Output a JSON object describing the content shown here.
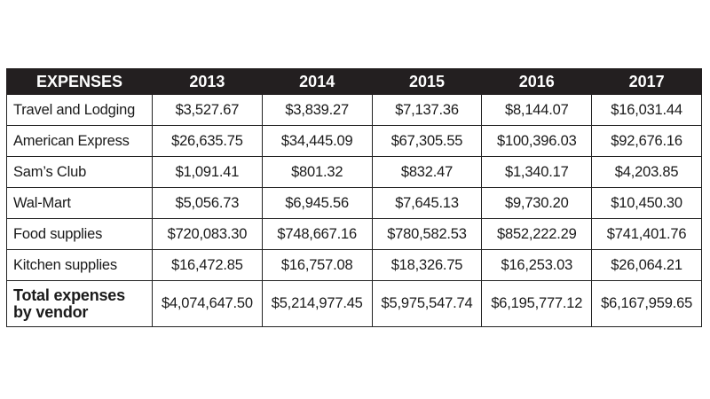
{
  "table": {
    "header": [
      "EXPENSES",
      "2013",
      "2014",
      "2015",
      "2016",
      "2017"
    ],
    "rows": [
      {
        "label": "Travel and Lodging",
        "values": [
          "$3,527.67",
          "$3,839.27",
          "$7,137.36",
          "$8,144.07",
          "$16,031.44"
        ]
      },
      {
        "label": "American Express",
        "values": [
          "$26,635.75",
          "$34,445.09",
          "$67,305.55",
          "$100,396.03",
          "$92,676.16"
        ]
      },
      {
        "label": "Sam’s Club",
        "values": [
          "$1,091.41",
          "$801.32",
          "$832.47",
          "$1,340.17",
          "$4,203.85"
        ]
      },
      {
        "label": "Wal-Mart",
        "values": [
          "$5,056.73",
          "$6,945.56",
          "$7,645.13",
          "$9,730.20",
          "$10,450.30"
        ]
      },
      {
        "label": "Food supplies",
        "values": [
          "$720,083.30",
          "$748,667.16",
          "$780,582.53",
          "$852,222.29",
          "$741,401.76"
        ]
      },
      {
        "label": "Kitchen supplies",
        "values": [
          "$16,472.85",
          "$16,757.08",
          "$18,326.75",
          "$16,253.03",
          "$26,064.21"
        ]
      }
    ],
    "total": {
      "label_line1": "Total expenses",
      "label_line2": "by vendor",
      "values": [
        "$4,074,647.50",
        "$5,214,977.45",
        "$5,975,547.74",
        "$6,195,777.12",
        "$6,167,959.65"
      ]
    }
  },
  "colors": {
    "header_background": "#231f20",
    "header_text": "#ffffff",
    "border": "#222222",
    "body_text": "#1a1a1a"
  }
}
